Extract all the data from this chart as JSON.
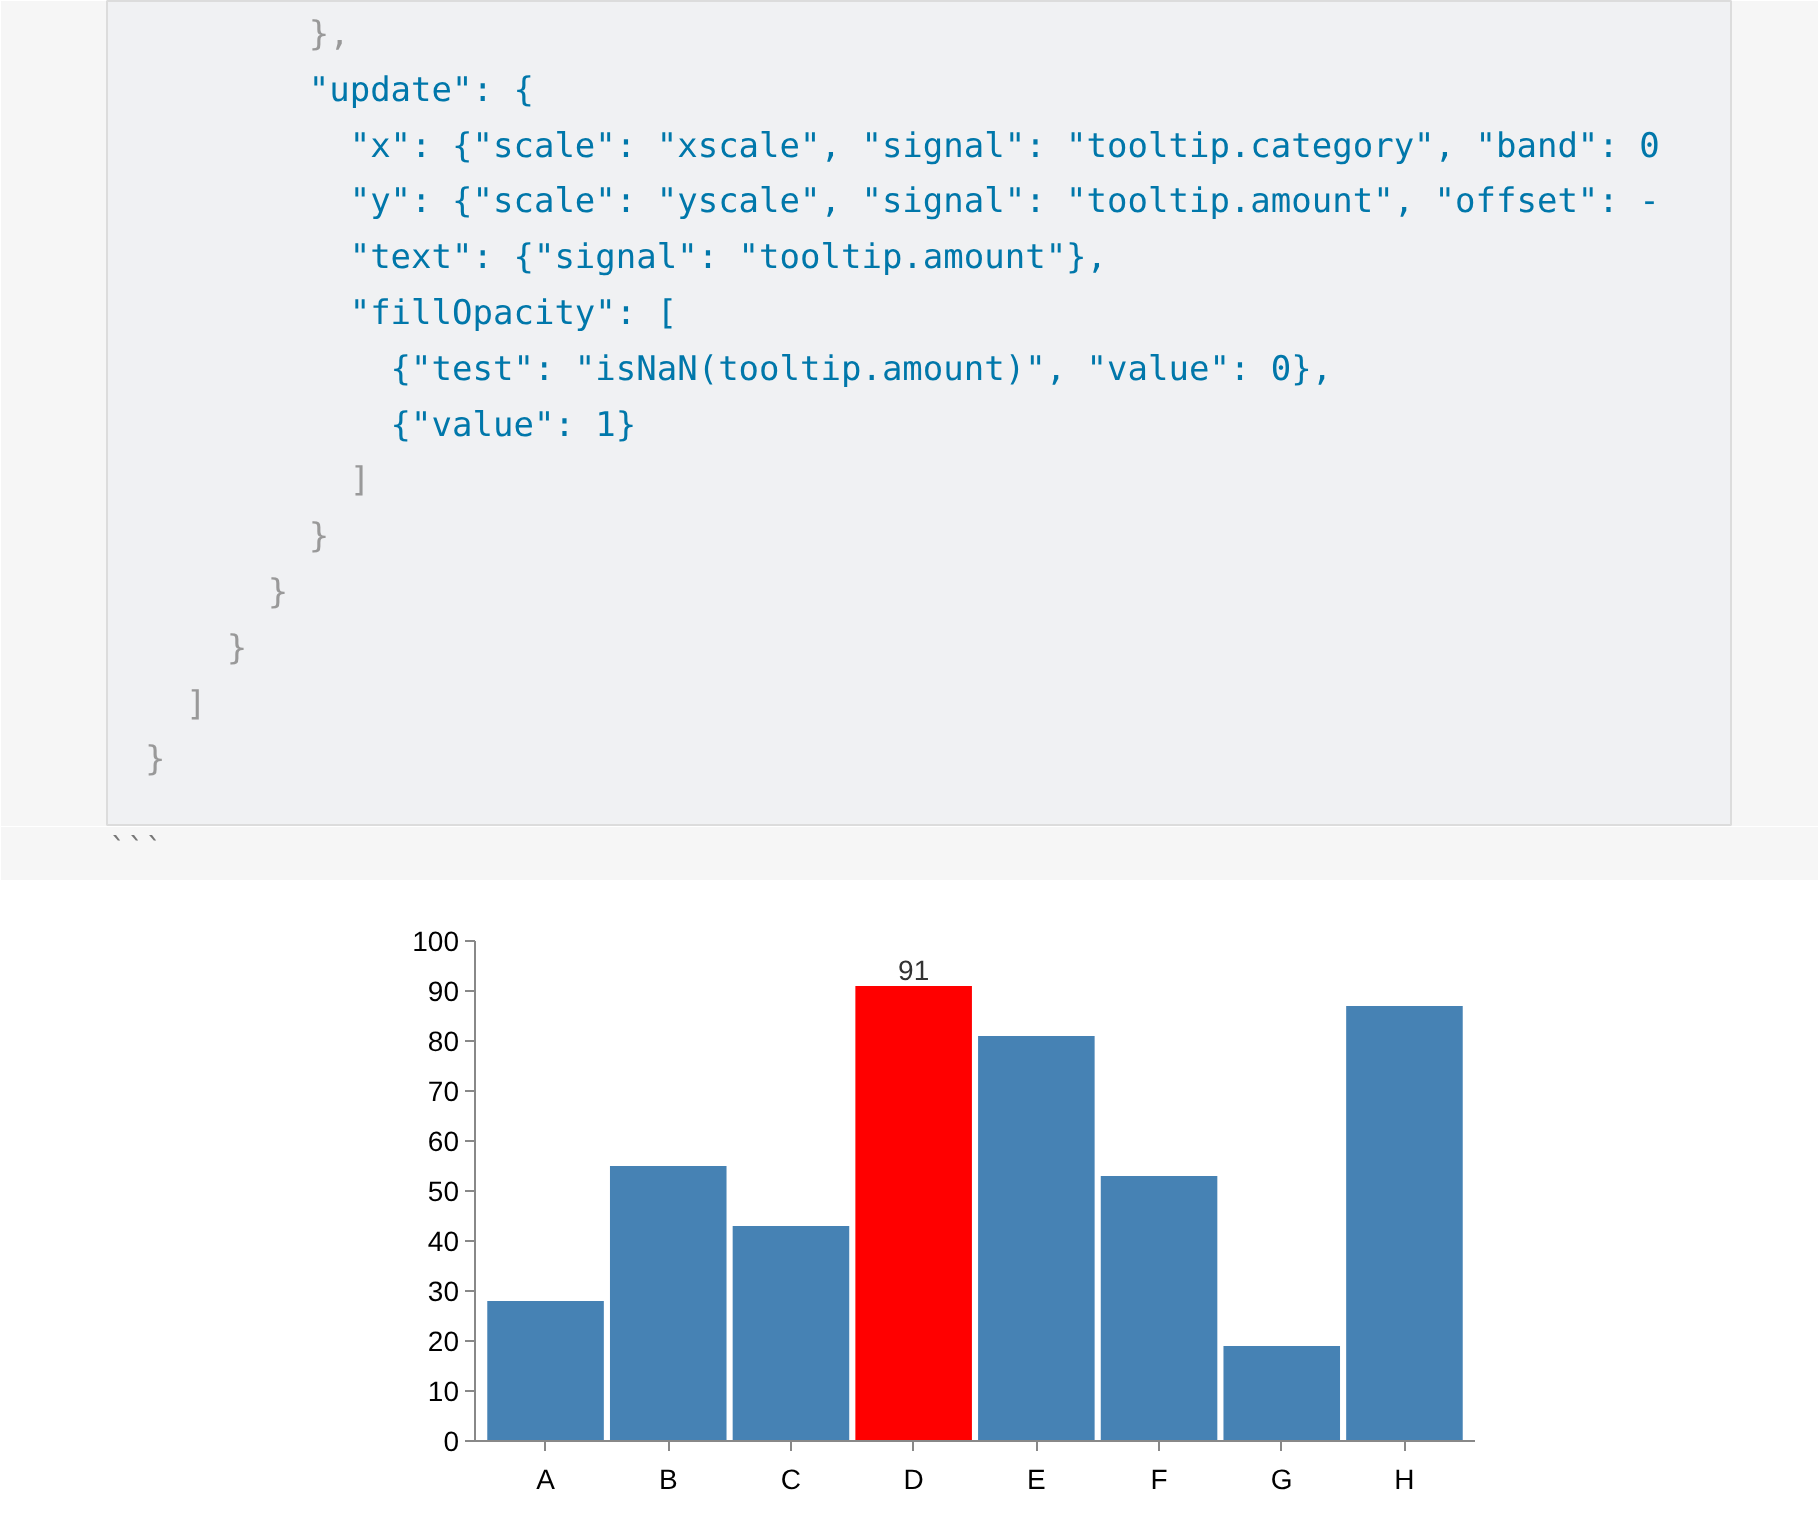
{
  "chart_data": {
    "type": "bar",
    "categories": [
      "A",
      "B",
      "C",
      "D",
      "E",
      "F",
      "G",
      "H"
    ],
    "values": [
      28,
      55,
      43,
      91,
      81,
      53,
      19,
      87
    ],
    "colors": [
      "#4682b4",
      "#4682b4",
      "#4682b4",
      "#ff0000",
      "#4682b4",
      "#4682b4",
      "#4682b4",
      "#4682b4"
    ],
    "value_labels": [
      null,
      null,
      null,
      "91",
      null,
      null,
      null,
      null
    ],
    "ylim": [
      0,
      100
    ],
    "yticks": [
      0,
      10,
      20,
      30,
      40,
      50,
      60,
      70,
      80,
      90,
      100
    ],
    "grid": false,
    "annotations": [
      "        },",
      "        \"update\": {",
      "          \"x\": {\"scale\": \"xscale\", \"signal\": \"tooltip.category\", \"band\": 0",
      "          \"y\": {\"scale\": \"yscale\", \"signal\": \"tooltip.amount\", \"offset\": -",
      "          \"text\": {\"signal\": \"tooltip.amount\"},",
      "          \"fillOpacity\": [",
      "            {\"test\": \"isNaN(tooltip.amount)\", \"value\": 0},",
      "            {\"value\": 1}",
      "          ]",
      "        }",
      "      }",
      "    }",
      "  ]",
      "}",
      "```"
    ]
  }
}
